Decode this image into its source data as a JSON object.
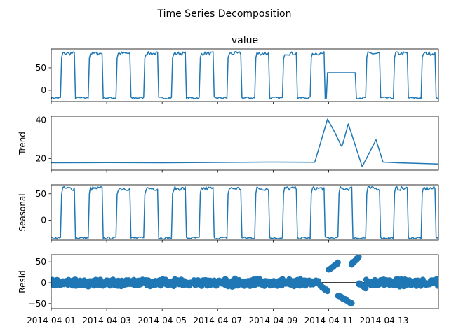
{
  "chart_data": {
    "type": "line",
    "title": "Time Series Decomposition",
    "x_range": [
      "2014-04-01",
      "2014-04-14 23:00"
    ],
    "x_ticks": [
      "2014-04-01",
      "2014-04-03",
      "2014-04-05",
      "2014-04-07",
      "2014-04-09",
      "2014-04-11",
      "2014-04-13"
    ],
    "panels": [
      {
        "name": "value",
        "title": "value",
        "ylabel": "",
        "ylim": [
          -25,
          92
        ],
        "yticks": [
          0,
          50
        ],
        "y_tick_labels": [
          "0",
          "50"
        ],
        "style": "line",
        "daily_pattern": {
          "low": -17,
          "high": 82,
          "rise_hour": 9,
          "fall_hour": 21
        },
        "anomaly": {
          "from": "2014-04-10 23:00",
          "to": "2014-04-11 23:00",
          "value": 39
        }
      },
      {
        "name": "trend",
        "title": "",
        "ylabel": "Trend",
        "ylim": [
          14,
          42
        ],
        "yticks": [
          20,
          40
        ],
        "y_tick_labels": [
          "20",
          "40"
        ],
        "style": "line",
        "points": [
          [
            "2014-04-01 00:00",
            17.8
          ],
          [
            "2014-04-03 00:00",
            17.9
          ],
          [
            "2014-04-05 00:00",
            17.8
          ],
          [
            "2014-04-07 00:00",
            18.0
          ],
          [
            "2014-04-09 00:00",
            18.2
          ],
          [
            "2014-04-10 12:00",
            18.1
          ],
          [
            "2014-04-10 23:00",
            40.5
          ],
          [
            "2014-04-11 05:00",
            34.0
          ],
          [
            "2014-04-11 11:00",
            26.5
          ],
          [
            "2014-04-11 12:00",
            27.2
          ],
          [
            "2014-04-11 17:00",
            38.0
          ],
          [
            "2014-04-11 23:00",
            27.0
          ],
          [
            "2014-04-12 05:00",
            15.8
          ],
          [
            "2014-04-12 17:00",
            29.8
          ],
          [
            "2014-04-12 23:00",
            18.2
          ],
          [
            "2014-04-13 12:00",
            17.8
          ],
          [
            "2014-04-14 23:00",
            17.2
          ]
        ]
      },
      {
        "name": "seasonal",
        "title": "",
        "ylabel": "Seasonal",
        "ylim": [
          -38,
          67
        ],
        "yticks": [
          0,
          50
        ],
        "y_tick_labels": [
          "0",
          "50"
        ],
        "style": "line",
        "daily_pattern": {
          "low": -34,
          "high": 60,
          "rise_hour": 9,
          "fall_hour": 21
        }
      },
      {
        "name": "resid",
        "title": "",
        "ylabel": "Resid",
        "ylim": [
          -62,
          67
        ],
        "yticks": [
          -50,
          0,
          50
        ],
        "y_tick_labels": [
          "−50",
          "0",
          "50"
        ],
        "style": "scatter",
        "baseline": 0,
        "normal_spread": 10,
        "anomaly_clusters": [
          {
            "from": "2014-04-10 16:00",
            "to": "2014-04-10 23:00",
            "start": -5,
            "end": -20
          },
          {
            "from": "2014-04-11 00:00",
            "to": "2014-04-11 08:00",
            "start": 30,
            "end": 47
          },
          {
            "from": "2014-04-11 08:00",
            "to": "2014-04-11 20:00",
            "start": -30,
            "end": -50
          },
          {
            "from": "2014-04-11 20:00",
            "to": "2014-04-12 02:00",
            "start": 45,
            "end": 62
          },
          {
            "from": "2014-04-12 02:00",
            "to": "2014-04-12 08:00",
            "start": -2,
            "end": -12
          }
        ]
      }
    ]
  }
}
